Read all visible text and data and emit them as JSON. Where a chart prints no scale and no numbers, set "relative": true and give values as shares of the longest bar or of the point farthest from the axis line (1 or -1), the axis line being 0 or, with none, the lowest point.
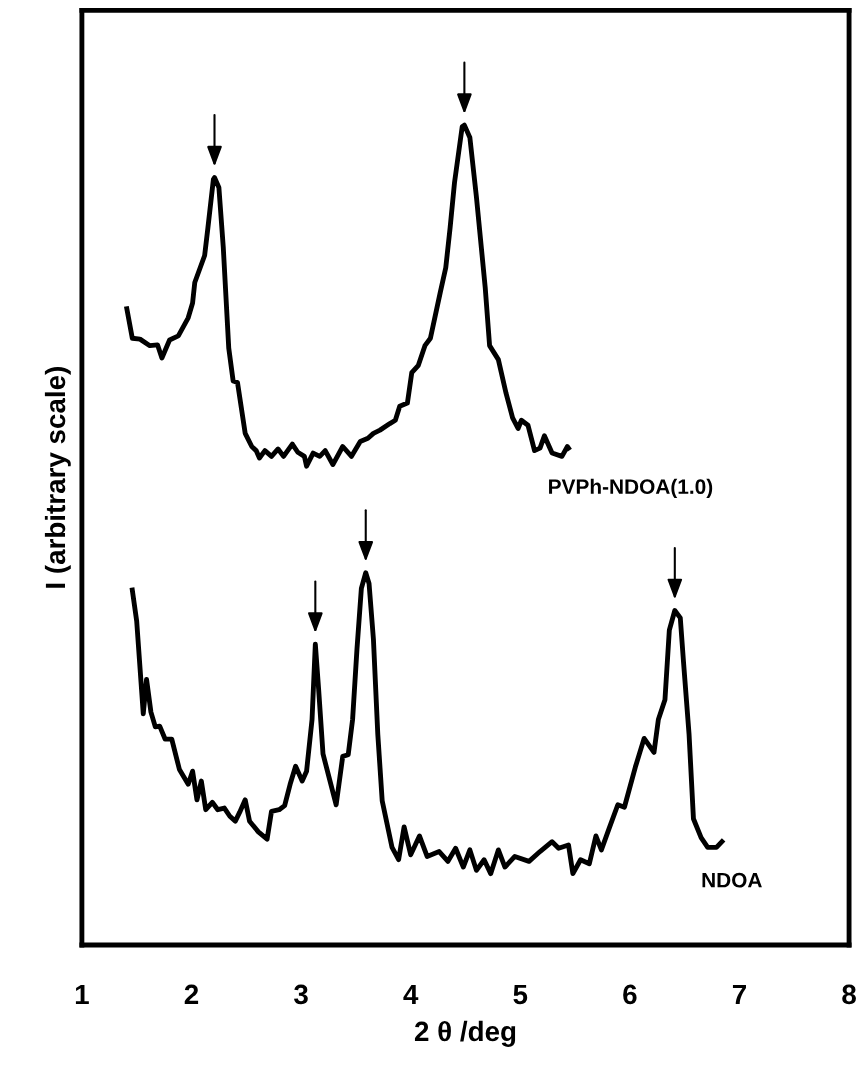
{
  "chart_data": {
    "type": "line",
    "relative": true,
    "xlabel": "2 θ /deg",
    "ylabel": "I (arbitrary scale)",
    "xlim": [
      1,
      8
    ],
    "xticks": [
      1,
      2,
      3,
      4,
      5,
      6,
      7,
      8
    ],
    "grid": false,
    "legend": false,
    "marker": "none",
    "line_style": "solid",
    "series": [
      {
        "name": "PVPh-NDOA(1.0)",
        "color": "#000000",
        "x": [
          1.41,
          1.46,
          1.53,
          1.62,
          1.69,
          1.73,
          1.8,
          1.88,
          1.97,
          2.01,
          2.03,
          2.12,
          2.15,
          2.2,
          2.21,
          2.25,
          2.29,
          2.34,
          2.38,
          2.42,
          2.49,
          2.55,
          2.59,
          2.62,
          2.67,
          2.73,
          2.79,
          2.84,
          2.92,
          2.97,
          3.03,
          3.05,
          3.11,
          3.17,
          3.22,
          3.29,
          3.38,
          3.46,
          3.54,
          3.61,
          3.66,
          3.72,
          3.81,
          3.86,
          3.9,
          3.97,
          4.01,
          4.07,
          4.13,
          4.18,
          4.27,
          4.32,
          4.36,
          4.4,
          4.47,
          4.49,
          4.54,
          4.6,
          4.68,
          4.72,
          4.8,
          4.87,
          4.93,
          4.98,
          5.01,
          5.07,
          5.13,
          5.18,
          5.22,
          5.29,
          5.38,
          5.43,
          5.44
        ],
        "values": [
          0.776,
          0.74,
          0.739,
          0.731,
          0.732,
          0.716,
          0.738,
          0.743,
          0.765,
          0.783,
          0.808,
          0.841,
          0.875,
          0.934,
          0.936,
          0.924,
          0.851,
          0.728,
          0.688,
          0.686,
          0.624,
          0.608,
          0.603,
          0.594,
          0.603,
          0.596,
          0.605,
          0.596,
          0.611,
          0.601,
          0.596,
          0.584,
          0.6,
          0.596,
          0.603,
          0.586,
          0.608,
          0.596,
          0.614,
          0.618,
          0.624,
          0.628,
          0.636,
          0.64,
          0.657,
          0.661,
          0.698,
          0.707,
          0.731,
          0.74,
          0.796,
          0.826,
          0.875,
          0.93,
          0.998,
          1.0,
          0.985,
          0.912,
          0.802,
          0.731,
          0.714,
          0.673,
          0.643,
          0.63,
          0.64,
          0.634,
          0.603,
          0.606,
          0.621,
          0.6,
          0.596,
          0.608,
          0.606
        ]
      },
      {
        "name": "NDOA",
        "color": "#000000",
        "x": [
          1.46,
          1.5,
          1.56,
          1.59,
          1.63,
          1.67,
          1.71,
          1.76,
          1.82,
          1.89,
          1.97,
          2.01,
          2.05,
          2.09,
          2.13,
          2.19,
          2.24,
          2.3,
          2.35,
          2.4,
          2.44,
          2.49,
          2.53,
          2.61,
          2.69,
          2.73,
          2.8,
          2.85,
          2.9,
          2.95,
          3.01,
          3.05,
          3.1,
          3.13,
          3.16,
          3.2,
          3.26,
          3.32,
          3.38,
          3.43,
          3.47,
          3.51,
          3.55,
          3.59,
          3.62,
          3.66,
          3.7,
          3.74,
          3.83,
          3.89,
          3.94,
          4.0,
          4.08,
          4.15,
          4.26,
          4.34,
          4.41,
          4.48,
          4.54,
          4.6,
          4.67,
          4.73,
          4.8,
          4.86,
          4.95,
          5.08,
          5.18,
          5.29,
          5.35,
          5.44,
          5.48,
          5.55,
          5.63,
          5.69,
          5.74,
          5.81,
          5.89,
          5.95,
          6.05,
          6.13,
          6.22,
          6.26,
          6.32,
          6.36,
          6.41,
          6.46,
          6.49,
          6.54,
          6.58,
          6.65,
          6.71,
          6.79,
          6.84
        ],
        "values": [
          0.433,
          0.395,
          0.282,
          0.324,
          0.284,
          0.266,
          0.267,
          0.251,
          0.251,
          0.214,
          0.196,
          0.212,
          0.177,
          0.2,
          0.165,
          0.174,
          0.165,
          0.167,
          0.157,
          0.151,
          0.162,
          0.177,
          0.151,
          0.138,
          0.129,
          0.163,
          0.165,
          0.17,
          0.196,
          0.218,
          0.2,
          0.212,
          0.275,
          0.367,
          0.312,
          0.233,
          0.202,
          0.171,
          0.23,
          0.232,
          0.275,
          0.361,
          0.435,
          0.454,
          0.441,
          0.373,
          0.257,
          0.176,
          0.119,
          0.104,
          0.144,
          0.11,
          0.133,
          0.108,
          0.114,
          0.102,
          0.118,
          0.095,
          0.116,
          0.091,
          0.104,
          0.087,
          0.116,
          0.095,
          0.108,
          0.102,
          0.114,
          0.126,
          0.118,
          0.122,
          0.087,
          0.104,
          0.099,
          0.133,
          0.116,
          0.142,
          0.171,
          0.168,
          0.217,
          0.252,
          0.235,
          0.275,
          0.299,
          0.384,
          0.408,
          0.399,
          0.344,
          0.257,
          0.154,
          0.131,
          0.119,
          0.119,
          0.126
        ]
      }
    ]
  }
}
